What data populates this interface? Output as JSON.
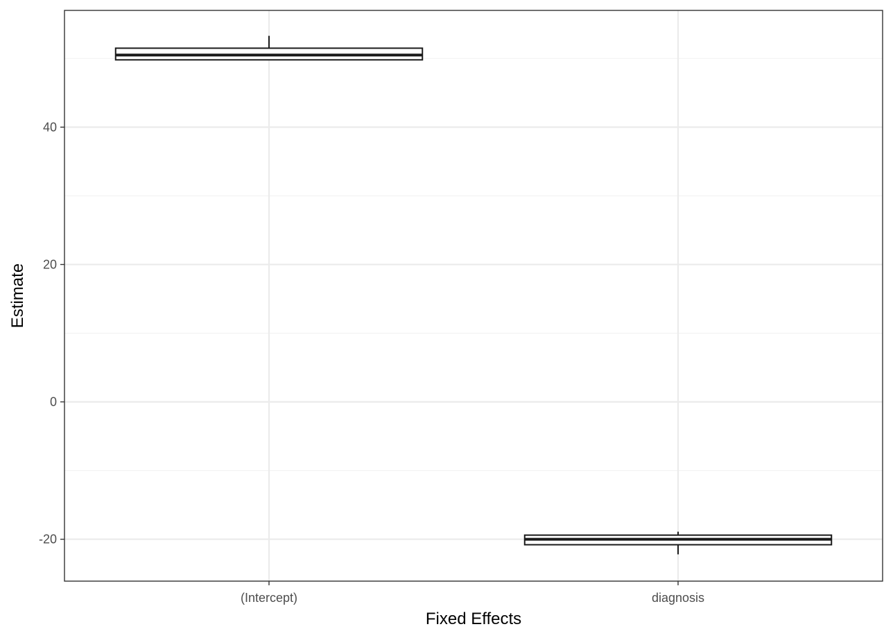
{
  "chart_data": {
    "type": "boxplot",
    "title": "",
    "xlabel": "Fixed Effects",
    "ylabel": "Estimate",
    "categories": [
      "(Intercept)",
      "diagnosis"
    ],
    "boxes": [
      {
        "category": "(Intercept)",
        "whisker_low": 49.8,
        "q1": 49.8,
        "median": 50.5,
        "q3": 51.5,
        "whisker_high": 53.3
      },
      {
        "category": "diagnosis",
        "whisker_low": -22.2,
        "q1": -20.8,
        "median": -20.0,
        "q3": -19.4,
        "whisker_high": -18.9
      }
    ],
    "ylim": [
      -26.1,
      57.0
    ],
    "yticks": [
      -20,
      0,
      20,
      40
    ],
    "ytick_labels": [
      "-20",
      "0",
      "20",
      "40"
    ],
    "grid": true,
    "theme": "bw",
    "colors": {
      "panel_border": "#333333",
      "grid_major": "#ebebeb",
      "grid_minor": "#f2f2f2",
      "box_stroke": "#1a1a1a",
      "tick_text": "#4d4d4d"
    }
  }
}
